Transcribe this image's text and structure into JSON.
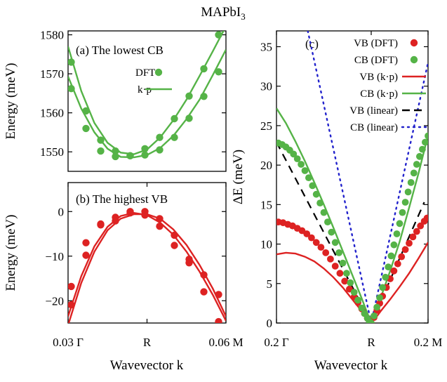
{
  "figure": {
    "title": "MAPbI",
    "title_sub": "3",
    "colors": {
      "vb": "#dd2222",
      "cb": "#55b347",
      "linear_vb": "#000000",
      "linear_cb": "#2222cc"
    }
  },
  "chart_data": [
    {
      "id": "panel_a",
      "type": "scatter",
      "panel_label": "(a) The lowest CB",
      "xlabel": "",
      "ylabel": "Energy (meV)",
      "xlim": [
        0.03,
        0.06
      ],
      "ylim": [
        1545,
        1581
      ],
      "yticks": [
        1550,
        1560,
        1570,
        1580
      ],
      "xticks": [],
      "legend": {
        "position": "top-right",
        "entries": [
          "DFT",
          "k·p"
        ]
      },
      "series": [
        {
          "name": "DFT",
          "color": "#55b347",
          "kind": "points",
          "branch": "upper",
          "x": [
            0.0306,
            0.0334,
            0.0362,
            0.039,
            0.0418,
            0.0446,
            0.0474,
            0.0502,
            0.053,
            0.0558,
            0.0586
          ],
          "y": [
            1573.0,
            1560.5,
            1553.0,
            1550.2,
            1549.0,
            1550.8,
            1553.7,
            1558.5,
            1564.3,
            1571.3,
            1580.0
          ]
        },
        {
          "name": "DFT",
          "color": "#55b347",
          "kind": "points",
          "branch": "lower",
          "x": [
            0.0306,
            0.0334,
            0.0362,
            0.039,
            0.0418,
            0.0446,
            0.0474,
            0.0502,
            0.053,
            0.0558,
            0.0586
          ],
          "y": [
            1566.2,
            1556.0,
            1550.2,
            1548.8,
            1549.0,
            1549.2,
            1550.5,
            1553.7,
            1558.6,
            1564.2,
            1570.5
          ]
        },
        {
          "name": "k·p",
          "color": "#55b347",
          "kind": "line",
          "branch": "upper",
          "x": [
            0.03,
            0.0325,
            0.035,
            0.0375,
            0.04,
            0.0425,
            0.045,
            0.0475,
            0.05,
            0.0525,
            0.055,
            0.0575,
            0.06
          ],
          "y": [
            1577.0,
            1565.6,
            1557.4,
            1552.3,
            1549.8,
            1549.4,
            1550.6,
            1553.7,
            1558.1,
            1563.4,
            1569.5,
            1575.8,
            1582.2
          ]
        },
        {
          "name": "k·p",
          "color": "#55b347",
          "kind": "line",
          "branch": "lower",
          "x": [
            0.03,
            0.0325,
            0.035,
            0.0375,
            0.04,
            0.0425,
            0.045,
            0.0475,
            0.05,
            0.0525,
            0.055,
            0.0575,
            0.06
          ],
          "y": [
            1569.3,
            1561.1,
            1555.0,
            1550.8,
            1548.7,
            1548.6,
            1549.2,
            1551.0,
            1554.1,
            1558.4,
            1563.4,
            1569.7,
            1576.2
          ]
        }
      ]
    },
    {
      "id": "panel_b",
      "type": "scatter",
      "panel_label": "(b) The highest VB",
      "xlabel": "",
      "ylabel": "Energy (meV)",
      "xlim": [
        0.03,
        0.06
      ],
      "ylim": [
        -25,
        6.5
      ],
      "yticks": [
        0,
        -10,
        -20
      ],
      "ytick_labels": [
        "0",
        "−10",
        "−20"
      ],
      "xticks": [
        0.03,
        0.045,
        0.06
      ],
      "xtick_labels": [
        "0.03 Γ",
        "R",
        "0.06 M"
      ],
      "series": [
        {
          "name": "DFT",
          "color": "#dd2222",
          "kind": "points",
          "branch": "upper",
          "x": [
            0.0306,
            0.0334,
            0.0362,
            0.039,
            0.0418,
            0.0446,
            0.0474,
            0.0502,
            0.053,
            0.0558,
            0.0586
          ],
          "y": [
            -16.8,
            -7.0,
            -2.8,
            -1.3,
            0.0,
            0.0,
            -1.6,
            -5.3,
            -11.5,
            -14.2,
            -18.6
          ]
        },
        {
          "name": "DFT",
          "color": "#dd2222",
          "kind": "points",
          "branch": "lower",
          "x": [
            0.0306,
            0.0334,
            0.0362,
            0.039,
            0.0418,
            0.0446,
            0.0474,
            0.0502,
            0.053,
            0.0558,
            0.0586
          ],
          "y": [
            -20.9,
            -9.8,
            -3.0,
            -2.1,
            -0.3,
            -0.8,
            -3.3,
            -7.6,
            -10.7,
            -18.0,
            -24.7
          ]
        },
        {
          "name": "k·p",
          "color": "#dd2222",
          "kind": "line",
          "branch": "upper",
          "x": [
            0.03,
            0.0325,
            0.035,
            0.0375,
            0.04,
            0.0425,
            0.045,
            0.0475,
            0.05,
            0.0525,
            0.055,
            0.0575,
            0.06
          ],
          "y": [
            -23.5,
            -14.5,
            -7.8,
            -3.4,
            -1.0,
            -0.3,
            -0.8,
            -2.5,
            -5.2,
            -9.0,
            -13.5,
            -18.7,
            -24.5
          ]
        },
        {
          "name": "k·p",
          "color": "#dd2222",
          "kind": "line",
          "branch": "lower",
          "x": [
            0.03,
            0.0325,
            0.035,
            0.0375,
            0.04,
            0.0425,
            0.045,
            0.0475,
            0.05,
            0.0525,
            0.055,
            0.0575,
            0.06
          ],
          "y": [
            -25.5,
            -16.0,
            -9.0,
            -4.2,
            -1.6,
            -0.6,
            -0.6,
            -1.6,
            -4.0,
            -7.5,
            -12.0,
            -17.3,
            -23.5
          ]
        }
      ]
    },
    {
      "id": "panel_c",
      "type": "scatter",
      "panel_label": "(c)",
      "xlabel": "Wavevector k",
      "ylabel": "ΔE (meV)",
      "xlim": [
        -1,
        0.6
      ],
      "ylim": [
        0,
        37
      ],
      "yticks": [
        0,
        5,
        10,
        15,
        20,
        25,
        30,
        35
      ],
      "xticks": [
        -1,
        0,
        0.6
      ],
      "xtick_labels": [
        "0.2 Γ",
        "R",
        "0.2 M"
      ],
      "legend": {
        "position": "top-right",
        "entries": [
          "VB (DFT)",
          "CB (DFT)",
          "VB (k·p)",
          "CB (k·p)",
          "VB (linear)",
          "CB (linear)"
        ]
      },
      "series": [
        {
          "name": "VB (DFT)",
          "color": "#dd2222",
          "kind": "points",
          "x": [
            -0.98,
            -0.93,
            -0.88,
            -0.83,
            -0.78,
            -0.73,
            -0.68,
            -0.63,
            -0.58,
            -0.53,
            -0.48,
            -0.43,
            -0.38,
            -0.33,
            -0.28,
            -0.23,
            -0.18,
            -0.14,
            -0.1,
            -0.07,
            -0.04,
            -0.02,
            0.0,
            0.03,
            0.06,
            0.09,
            0.12,
            0.16,
            0.2,
            0.24,
            0.28,
            0.32,
            0.36,
            0.4,
            0.44,
            0.48,
            0.52,
            0.56,
            0.59
          ],
          "y": [
            12.8,
            12.7,
            12.5,
            12.3,
            12.0,
            11.7,
            11.3,
            10.8,
            10.2,
            9.6,
            8.9,
            8.1,
            7.2,
            6.3,
            5.3,
            4.3,
            3.3,
            2.6,
            1.8,
            1.2,
            0.6,
            0.3,
            0.0,
            0.7,
            1.6,
            2.5,
            3.4,
            4.5,
            5.6,
            6.6,
            7.5,
            8.4,
            9.3,
            10.1,
            10.9,
            11.6,
            12.3,
            12.9,
            13.3
          ]
        },
        {
          "name": "CB (DFT)",
          "color": "#55b347",
          "kind": "points",
          "x": [
            -0.98,
            -0.94,
            -0.9,
            -0.86,
            -0.82,
            -0.78,
            -0.74,
            -0.7,
            -0.66,
            -0.62,
            -0.58,
            -0.54,
            -0.5,
            -0.46,
            -0.42,
            -0.38,
            -0.34,
            -0.3,
            -0.26,
            -0.22,
            -0.18,
            -0.14,
            -0.1,
            -0.07,
            -0.04,
            -0.02,
            0.0,
            0.03,
            0.06,
            0.09,
            0.12,
            0.15,
            0.18,
            0.21,
            0.24,
            0.27,
            0.3,
            0.33,
            0.36,
            0.39,
            0.42,
            0.45,
            0.48,
            0.51,
            0.54,
            0.57,
            0.6
          ],
          "y": [
            22.8,
            22.6,
            22.3,
            21.9,
            21.4,
            20.8,
            20.1,
            19.3,
            18.4,
            17.4,
            16.3,
            15.2,
            14.0,
            12.8,
            11.5,
            10.2,
            8.9,
            7.6,
            6.3,
            5.1,
            3.9,
            2.9,
            1.9,
            1.2,
            0.6,
            0.2,
            0.0,
            0.9,
            2.0,
            3.2,
            4.5,
            5.8,
            7.1,
            8.5,
            9.9,
            11.3,
            12.6,
            14.0,
            15.3,
            16.6,
            17.8,
            19.0,
            20.1,
            21.1,
            22.0,
            22.9,
            23.7
          ]
        },
        {
          "name": "VB (k·p)",
          "color": "#dd2222",
          "kind": "line",
          "x": [
            -1.0,
            -0.9,
            -0.8,
            -0.7,
            -0.6,
            -0.5,
            -0.4,
            -0.3,
            -0.2,
            -0.1,
            -0.05,
            0.0,
            0.05,
            0.1,
            0.2,
            0.3,
            0.4,
            0.5,
            0.6
          ],
          "y": [
            8.7,
            8.9,
            8.8,
            8.4,
            7.8,
            6.9,
            5.8,
            4.5,
            3.0,
            1.5,
            0.8,
            0.0,
            0.7,
            1.5,
            3.0,
            4.6,
            6.3,
            8.2,
            10.2
          ]
        },
        {
          "name": "CB (k·p)",
          "color": "#55b347",
          "kind": "line",
          "x": [
            -1.0,
            -0.9,
            -0.8,
            -0.7,
            -0.6,
            -0.5,
            -0.4,
            -0.3,
            -0.2,
            -0.1,
            -0.05,
            0.0,
            0.05,
            0.1,
            0.2,
            0.3,
            0.4,
            0.5,
            0.6
          ],
          "y": [
            27.2,
            25.3,
            23.0,
            20.5,
            17.8,
            15.0,
            12.1,
            9.1,
            6.1,
            3.1,
            1.5,
            0.0,
            1.6,
            3.2,
            6.6,
            10.3,
            14.6,
            19.0,
            23.8
          ]
        },
        {
          "name": "VB (linear)",
          "color": "#000000",
          "kind": "dashed",
          "x": [
            -1.0,
            0.0,
            0.56
          ],
          "y": [
            22.9,
            0.0,
            15.3
          ]
        },
        {
          "name": "CB (linear)",
          "color": "#2222cc",
          "kind": "dotted",
          "x": [
            -0.67,
            0.0,
            0.6
          ],
          "y": [
            37.0,
            0.0,
            33.0
          ]
        }
      ]
    }
  ],
  "shared": {
    "xlabel_left": "Wavevector k",
    "xlabel_right": "Wavevector k"
  }
}
